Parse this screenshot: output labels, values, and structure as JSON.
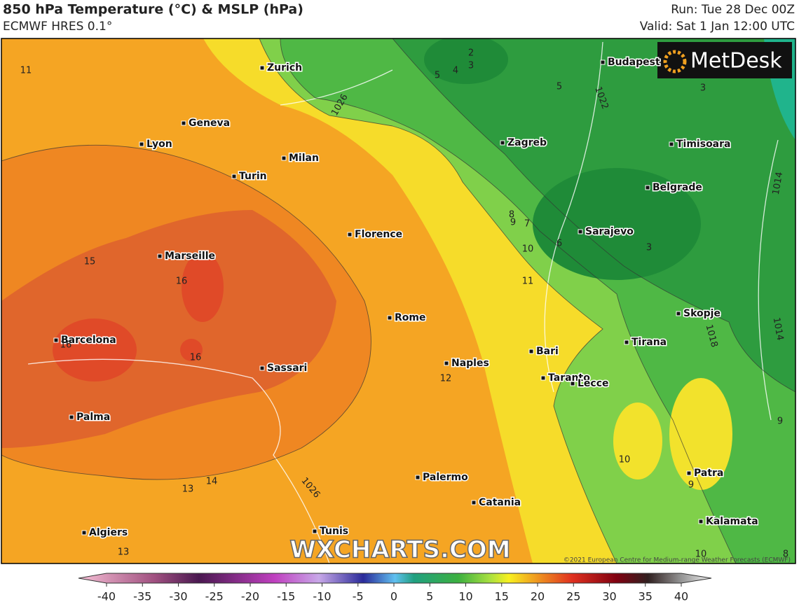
{
  "header": {
    "title": "850 hPa Temperature (°C) & MSLP (hPa)",
    "subtitle": "ECMWF HRES 0.1°",
    "run": "Run: Tue 28 Dec 00Z",
    "valid": "Valid: Sat 1 Jan 12:00 UTC"
  },
  "logo": "MetDesk",
  "watermark": "WXCHARTS.COM",
  "copyright": "©2021 European Centre for Medium-range Weather Forecasts (ECMWF)",
  "cities": [
    "Zurich",
    "Budapest",
    "Geneva",
    "Lyon",
    "Zagreb",
    "Timisoara",
    "Milan",
    "Turin",
    "Belgrade",
    "Florence",
    "Sarajevo",
    "Marseille",
    "Skopje",
    "Rome",
    "Barcelona",
    "Tirana",
    "Bari",
    "Naples",
    "Sassari",
    "Taranto",
    "Lecce",
    "Palma",
    "Patra",
    "Palermo",
    "Catania",
    "Kalamata",
    "Algiers",
    "Tunis"
  ],
  "contour_labels": [
    "11",
    "2",
    "3",
    "4",
    "5",
    "5",
    "3",
    "1026",
    "1022",
    "1014",
    "8",
    "9",
    "7",
    "6",
    "3",
    "10",
    "11",
    "15",
    "16",
    "16",
    "16",
    "12",
    "1014",
    "1018",
    "9",
    "10",
    "9",
    "14",
    "13",
    "1026",
    "13",
    "10",
    "8"
  ],
  "colorbar": {
    "ticks": [
      -40,
      -35,
      -30,
      -25,
      -20,
      -15,
      -10,
      -5,
      0,
      5,
      10,
      15,
      20,
      25,
      30,
      35,
      40
    ]
  }
}
